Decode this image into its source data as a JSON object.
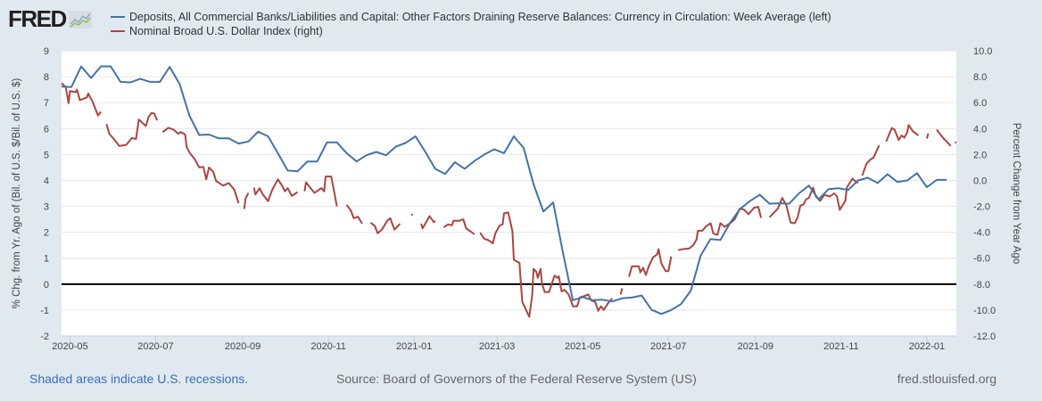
{
  "header": {
    "logo_text": "FRED",
    "legend": [
      {
        "label": "Deposits, All Commercial Banks/Liabilities and Capital: Other Factors Draining Reserve Balances: Currency in Circulation: Week Average (left)",
        "color": "#4572a7"
      },
      {
        "label": "Nominal Broad U.S. Dollar Index (right)",
        "color": "#aa4643"
      }
    ]
  },
  "footer": {
    "recessions_note": "Shaded areas indicate U.S. recessions.",
    "source": "Source: Board of Governors of the Federal Reserve System (US)",
    "site": "fred.stlouisfed.org"
  },
  "chart_data": {
    "type": "line",
    "start_date": "2020-04-25",
    "x_domain_days": [
      0,
      637
    ],
    "x_ticks": [
      {
        "label": "2020-05",
        "day": 6
      },
      {
        "label": "2020-07",
        "day": 67
      },
      {
        "label": "2020-09",
        "day": 129
      },
      {
        "label": "2020-11",
        "day": 190
      },
      {
        "label": "2021-01",
        "day": 251
      },
      {
        "label": "2021-03",
        "day": 310
      },
      {
        "label": "2021-05",
        "day": 371
      },
      {
        "label": "2021-07",
        "day": 432
      },
      {
        "label": "2021-09",
        "day": 494
      },
      {
        "label": "2021-11",
        "day": 555
      },
      {
        "label": "2022-01",
        "day": 616
      }
    ],
    "ylabel_left": "% Chg. from Yr. Ago of (Bil. of U.S. $/Bil. of U.S. $)",
    "ylabel_right": "Percent Change from Year Ago",
    "ylim_left": [
      -2,
      9
    ],
    "ylim_right": [
      -12,
      10
    ],
    "left_ticks": [
      "9",
      "8",
      "7",
      "6",
      "5",
      "4",
      "3",
      "2",
      "1",
      "0",
      "-1",
      "-2"
    ],
    "right_ticks": [
      "10.0",
      "8.0",
      "6.0",
      "4.0",
      "2.0",
      "0.0",
      "-2.0",
      "-4.0",
      "-6.0",
      "-8.0",
      "-10.0",
      "-12.0"
    ],
    "zero_line_left": 0,
    "grid": true,
    "series": [
      {
        "name": "Currency in Circulation (left)",
        "axis": "left",
        "color": "#4572a7",
        "step_days": 7,
        "values": [
          7.62,
          7.6,
          8.4,
          7.95,
          8.4,
          8.4,
          7.8,
          7.78,
          7.92,
          7.8,
          7.8,
          8.38,
          7.72,
          6.5,
          5.75,
          5.77,
          5.62,
          5.62,
          5.42,
          5.5,
          5.88,
          5.7,
          5.05,
          4.38,
          4.35,
          4.73,
          4.73,
          5.47,
          5.47,
          5.05,
          4.73,
          4.97,
          5.1,
          4.97,
          5.3,
          5.45,
          5.7,
          5.1,
          4.45,
          4.25,
          4.7,
          4.45,
          4.75,
          5.0,
          5.2,
          5.05,
          5.7,
          5.25,
          3.85,
          2.8,
          3.15,
          1.2,
          -0.62,
          -0.5,
          -0.62,
          -0.6,
          -0.67,
          -0.55,
          -0.52,
          -0.44,
          -0.99,
          -1.15,
          -1.0,
          -0.77,
          -0.25,
          1.1,
          1.74,
          1.7,
          2.37,
          2.9,
          3.2,
          3.45,
          3.1,
          3.12,
          3.1,
          3.5,
          3.8,
          3.27,
          3.66,
          3.7,
          3.63,
          4.0,
          4.1,
          3.9,
          4.24,
          3.94,
          4.0,
          4.28,
          3.74,
          4.02,
          4.02
        ]
      },
      {
        "name": "Nominal Broad U.S. Dollar Index (right)",
        "axis": "right",
        "color": "#aa4643",
        "segments": [
          [
            [
              0,
              7.5
            ],
            [
              3,
              7.2
            ],
            [
              5,
              5.96
            ],
            [
              6,
              6.9
            ],
            [
              10,
              6.8
            ],
            [
              11,
              7.0
            ],
            [
              13,
              6.2
            ],
            [
              18,
              6.4
            ],
            [
              19,
              6.7
            ],
            [
              22,
              6.1
            ],
            [
              26,
              5.0
            ],
            [
              28,
              5.3
            ]
          ],
          [
            [
              32,
              4.34
            ],
            [
              34,
              3.6
            ],
            [
              38,
              3.1
            ],
            [
              41,
              2.66
            ],
            [
              46,
              2.74
            ],
            [
              50,
              3.26
            ],
            [
              53,
              3.2
            ],
            [
              55,
              4.7
            ],
            [
              58,
              4.4
            ],
            [
              60,
              4.2
            ],
            [
              62,
              4.9
            ],
            [
              64,
              5.2
            ],
            [
              66,
              5.16
            ],
            [
              68,
              4.64
            ]
          ],
          [
            [
              72,
              3.72
            ],
            [
              76,
              4.06
            ],
            [
              80,
              3.9
            ],
            [
              83,
              3.6
            ],
            [
              85,
              3.74
            ],
            [
              88,
              3.54
            ],
            [
              89,
              2.6
            ],
            [
              91,
              2.16
            ],
            [
              95,
              1.6
            ],
            [
              98,
              1.0
            ],
            [
              101,
              1.04
            ],
            [
              103,
              0.08
            ],
            [
              105,
              1.0
            ],
            [
              108,
              0.66
            ],
            [
              110,
              -0.04
            ],
            [
              115,
              -0.4
            ],
            [
              119,
              -0.2
            ],
            [
              123,
              -0.72
            ],
            [
              126,
              -1.76
            ]
          ],
          [
            [
              130,
              -2.2
            ],
            [
              131,
              -1.4
            ],
            [
              133,
              -0.96
            ]
          ],
          [
            [
              137,
              -0.56
            ],
            [
              138,
              -1.08
            ],
            [
              141,
              -0.6
            ],
            [
              143,
              -1.04
            ],
            [
              147,
              -1.6
            ],
            [
              150,
              -0.72
            ],
            [
              154,
              0.08
            ],
            [
              157,
              -0.4
            ],
            [
              159,
              -0.84
            ],
            [
              161,
              -0.6
            ],
            [
              164,
              -1.2
            ],
            [
              168,
              -0.9
            ]
          ],
          [
            [
              173,
              -0.84
            ],
            [
              174,
              -0.14
            ],
            [
              177,
              -0.56
            ],
            [
              180,
              -0.96
            ],
            [
              185,
              -0.6
            ],
            [
              187,
              -0.84
            ],
            [
              188,
              0.3
            ],
            [
              192,
              0.3
            ],
            [
              194,
              -0.84
            ],
            [
              196,
              -2.0
            ]
          ],
          [
            [
              203,
              -1.88
            ],
            [
              206,
              -2.34
            ],
            [
              208,
              -2.92
            ],
            [
              211,
              -2.8
            ],
            [
              214,
              -3.34
            ]
          ],
          [
            [
              220,
              -3.26
            ],
            [
              223,
              -3.5
            ],
            [
              225,
              -4.08
            ],
            [
              228,
              -3.8
            ],
            [
              232,
              -3.1
            ],
            [
              234,
              -2.92
            ],
            [
              237,
              -3.8
            ],
            [
              241,
              -3.34
            ]
          ],
          [
            [
              249,
              -2.6
            ],
            [
              250,
              -2.7
            ]
          ],
          [
            [
              256,
              -3.34
            ],
            [
              257,
              -3.7
            ],
            [
              262,
              -2.76
            ],
            [
              265,
              -3.22
            ],
            [
              266,
              -3.12
            ]
          ],
          [
            [
              272,
              -3.62
            ],
            [
              275,
              -3.4
            ],
            [
              278,
              -3.46
            ],
            [
              279,
              -3.12
            ],
            [
              283,
              -3.12
            ],
            [
              286,
              -3.0
            ],
            [
              288,
              -3.7
            ],
            [
              291,
              -3.92
            ],
            [
              294,
              -4.16
            ]
          ],
          [
            [
              298,
              -4.04
            ],
            [
              301,
              -4.5
            ],
            [
              304,
              -4.62
            ],
            [
              307,
              -4.86
            ],
            [
              309,
              -4.04
            ],
            [
              312,
              -3.46
            ],
            [
              314,
              -3.4
            ],
            [
              315,
              -2.54
            ],
            [
              318,
              -2.48
            ],
            [
              321,
              -3.92
            ],
            [
              322,
              -6.12
            ],
            [
              326,
              -6.36
            ],
            [
              327,
              -7.98
            ],
            [
              328,
              -9.38
            ],
            [
              330,
              -9.84
            ],
            [
              333,
              -10.52
            ],
            [
              335,
              -8.9
            ],
            [
              336,
              -6.82
            ],
            [
              338,
              -7.06
            ],
            [
              339,
              -7.52
            ],
            [
              341,
              -6.82
            ],
            [
              342,
              -7.98
            ],
            [
              344,
              -8.62
            ],
            [
              347,
              -8.62
            ],
            [
              349,
              -7.98
            ],
            [
              351,
              -7.34
            ],
            [
              353,
              -7.52
            ],
            [
              354,
              -7.4
            ],
            [
              356,
              -8.56
            ],
            [
              358,
              -8.44
            ],
            [
              361,
              -8.8
            ],
            [
              363,
              -9.38
            ],
            [
              364,
              -9.72
            ],
            [
              367,
              -9.72
            ],
            [
              369,
              -9.02
            ],
            [
              371,
              -8.96
            ],
            [
              375,
              -8.8
            ],
            [
              377,
              -9.26
            ],
            [
              380,
              -9.38
            ],
            [
              382,
              -10.06
            ],
            [
              384,
              -9.72
            ],
            [
              386,
              -10.0
            ],
            [
              389,
              -9.48
            ],
            [
              392,
              -9.1
            ]
          ],
          [
            [
              398,
              -8.8
            ],
            [
              399,
              -8.32
            ]
          ],
          [
            [
              404,
              -7.43
            ],
            [
              406,
              -6.63
            ],
            [
              411,
              -6.63
            ],
            [
              412,
              -7.1
            ],
            [
              414,
              -6.74
            ],
            [
              416,
              -7.3
            ],
            [
              418,
              -6.63
            ],
            [
              421,
              -5.94
            ],
            [
              424,
              -5.7
            ],
            [
              425,
              -5.3
            ],
            [
              427,
              -6.4
            ],
            [
              430,
              -7.0
            ],
            [
              432,
              -7.0
            ],
            [
              434,
              -5.87
            ]
          ],
          [
            [
              439,
              -5.37
            ],
            [
              443,
              -5.3
            ],
            [
              447,
              -5.25
            ],
            [
              450,
              -4.95
            ],
            [
              452,
              -4.56
            ],
            [
              453,
              -3.88
            ],
            [
              456,
              -3.88
            ],
            [
              459,
              -3.53
            ],
            [
              462,
              -3.3
            ],
            [
              464,
              -4.1
            ],
            [
              467,
              -4.2
            ],
            [
              469,
              -3.3
            ],
            [
              472,
              -3.58
            ],
            [
              476,
              -3.3
            ],
            [
              479,
              -3.03
            ],
            [
              483,
              -2.16
            ],
            [
              486,
              -2.27
            ],
            [
              489,
              -2.61
            ],
            [
              493,
              -2.11
            ],
            [
              496,
              -2.04
            ],
            [
              498,
              -2.89
            ]
          ],
          [
            [
              504,
              -2.84
            ],
            [
              507,
              -2.5
            ],
            [
              510,
              -2.16
            ],
            [
              513,
              -1.35
            ],
            [
              516,
              -1.93
            ],
            [
              519,
              -3.26
            ],
            [
              522,
              -3.3
            ],
            [
              524,
              -2.84
            ],
            [
              526,
              -1.93
            ],
            [
              528,
              -1.88
            ],
            [
              530,
              -1.47
            ],
            [
              532,
              -1.35
            ],
            [
              535,
              -0.55
            ],
            [
              537,
              -1.24
            ],
            [
              540,
              -1.58
            ],
            [
              543,
              -1.12
            ],
            [
              547,
              -1.24
            ],
            [
              550,
              -1.0
            ],
            [
              552,
              -1.24
            ],
            [
              554,
              -2.27
            ],
            [
              558,
              -1.58
            ],
            [
              559,
              -0.55
            ],
            [
              563,
              0.14
            ],
            [
              565,
              -0.05
            ],
            [
              567,
              -0.2
            ]
          ],
          [
            [
              570,
              0.37
            ],
            [
              573,
              1.28
            ],
            [
              576,
              1.63
            ],
            [
              578,
              1.74
            ],
            [
              582,
              2.7
            ]
          ],
          [
            [
              587,
              3.0
            ],
            [
              591,
              4.04
            ],
            [
              593,
              3.92
            ],
            [
              596,
              3.12
            ],
            [
              598,
              3.46
            ],
            [
              600,
              3.3
            ],
            [
              602,
              3.7
            ],
            [
              603,
              4.27
            ],
            [
              606,
              3.8
            ],
            [
              610,
              3.46
            ]
          ],
          [
            [
              616,
              3.23
            ],
            [
              617,
              3.62
            ]
          ],
          [
            [
              623,
              3.92
            ],
            [
              625,
              3.62
            ],
            [
              628,
              3.23
            ],
            [
              631,
              2.89
            ],
            [
              633,
              2.66
            ]
          ],
          [
            [
              636,
              2.95
            ],
            [
              637,
              2.9
            ]
          ]
        ]
      }
    ]
  }
}
